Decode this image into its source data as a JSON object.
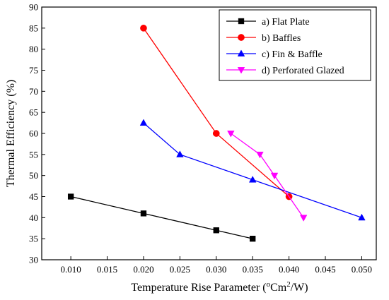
{
  "chart_data": {
    "type": "line",
    "xlabel": {
      "prefix": "Temperature Rise Parameter (",
      "deg": "o",
      "mid": "Cm",
      "sup2": "2",
      "suffix": "/W)"
    },
    "ylabel": "Thermal Efficiency (%)",
    "xlim": [
      0.006,
      0.052
    ],
    "ylim": [
      30,
      90
    ],
    "x_ticks": [
      0.01,
      0.015,
      0.02,
      0.025,
      0.03,
      0.035,
      0.04,
      0.045,
      0.05
    ],
    "x_tick_labels": [
      "0.010",
      "0.015",
      "0.020",
      "0.025",
      "0.030",
      "0.035",
      "0.040",
      "0.045",
      "0.050"
    ],
    "y_ticks": [
      30,
      35,
      40,
      45,
      50,
      55,
      60,
      65,
      70,
      75,
      80,
      85,
      90
    ],
    "y_tick_labels": [
      "30",
      "35",
      "40",
      "45",
      "50",
      "55",
      "60",
      "65",
      "70",
      "75",
      "80",
      "85",
      "90"
    ],
    "legend_position": "top-right",
    "series": [
      {
        "name": "a) Flat Plate",
        "color": "#000000",
        "marker": "square",
        "x": [
          0.01,
          0.02,
          0.03,
          0.035
        ],
        "y": [
          45,
          41,
          37,
          35
        ]
      },
      {
        "name": "b) Baffles",
        "color": "#ff0000",
        "marker": "circle",
        "x": [
          0.02,
          0.03,
          0.04
        ],
        "y": [
          85,
          60,
          45
        ]
      },
      {
        "name": "c) Fin & Baffle",
        "color": "#0000ff",
        "marker": "triangle-up",
        "x": [
          0.02,
          0.025,
          0.035,
          0.05
        ],
        "y": [
          62.5,
          55,
          49,
          40
        ]
      },
      {
        "name": "d) Perforated Glazed",
        "color": "#ff00ff",
        "marker": "triangle-down",
        "x": [
          0.032,
          0.036,
          0.038,
          0.042
        ],
        "y": [
          60,
          55,
          50,
          40
        ]
      }
    ]
  }
}
